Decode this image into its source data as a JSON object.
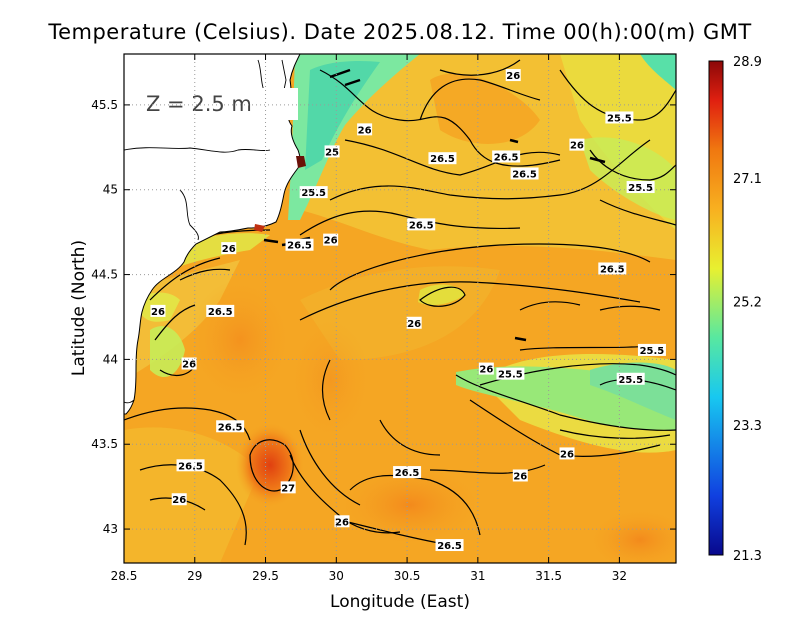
{
  "title": "Temperature (Celsius). Date 2025.08.12. Time 00(h):00(m)  GMT",
  "depth_label": "Z = 2.5 m",
  "xlabel": "Longitude (East)",
  "ylabel": "Latitude (North)",
  "x_ticks": [
    "28.5",
    "29",
    "29.5",
    "30",
    "30.5",
    "31",
    "31.5",
    "32"
  ],
  "y_ticks": [
    "43",
    "43.5",
    "44",
    "44.5",
    "45",
    "45.5"
  ],
  "colorbar": {
    "min": 21.3,
    "max": 28.9,
    "tick_labels": [
      "28.9",
      "27.1",
      "25.2",
      "23.3",
      "21.3"
    ],
    "colors": [
      "#08088c",
      "#1060e8",
      "#18c8f0",
      "#58e8a0",
      "#e8f030",
      "#f8b020",
      "#f07810",
      "#e02010",
      "#8c0808"
    ]
  },
  "map": {
    "lon_range": [
      28.5,
      32.4
    ],
    "lat_range": [
      42.8,
      45.8
    ],
    "grid": "dotted",
    "land_color": "#ffffff",
    "coastline_color": "#000000"
  },
  "contour_labels": [
    {
      "text": "26",
      "lon": 31.25,
      "lat": 45.67
    },
    {
      "text": "26",
      "lon": 30.2,
      "lat": 45.35
    },
    {
      "text": "25",
      "lon": 29.97,
      "lat": 45.22
    },
    {
      "text": "26.5",
      "lon": 30.75,
      "lat": 45.18
    },
    {
      "text": "26.5",
      "lon": 31.2,
      "lat": 45.19
    },
    {
      "text": "26.5",
      "lon": 31.33,
      "lat": 45.09
    },
    {
      "text": "25.5",
      "lon": 32.0,
      "lat": 45.42
    },
    {
      "text": "26",
      "lon": 31.7,
      "lat": 45.26
    },
    {
      "text": "25.5",
      "lon": 32.15,
      "lat": 45.01
    },
    {
      "text": "25.5",
      "lon": 29.84,
      "lat": 44.98
    },
    {
      "text": "26.5",
      "lon": 30.6,
      "lat": 44.79
    },
    {
      "text": "26",
      "lon": 29.96,
      "lat": 44.7
    },
    {
      "text": "26.5",
      "lon": 29.74,
      "lat": 44.67
    },
    {
      "text": "26",
      "lon": 29.24,
      "lat": 44.65
    },
    {
      "text": "26.5",
      "lon": 31.95,
      "lat": 44.53
    },
    {
      "text": "26.5",
      "lon": 29.18,
      "lat": 44.28
    },
    {
      "text": "26",
      "lon": 28.74,
      "lat": 44.28
    },
    {
      "text": "26",
      "lon": 30.55,
      "lat": 44.21
    },
    {
      "text": "25.5",
      "lon": 32.23,
      "lat": 44.05
    },
    {
      "text": "26",
      "lon": 28.96,
      "lat": 43.97
    },
    {
      "text": "26",
      "lon": 31.06,
      "lat": 43.94
    },
    {
      "text": "25.5",
      "lon": 31.23,
      "lat": 43.91
    },
    {
      "text": "25.5",
      "lon": 32.08,
      "lat": 43.88
    },
    {
      "text": "26.5",
      "lon": 29.25,
      "lat": 43.6
    },
    {
      "text": "26",
      "lon": 31.63,
      "lat": 43.44
    },
    {
      "text": "26.5",
      "lon": 28.97,
      "lat": 43.37
    },
    {
      "text": "26.5",
      "lon": 30.5,
      "lat": 43.33
    },
    {
      "text": "26",
      "lon": 31.3,
      "lat": 43.31
    },
    {
      "text": "27",
      "lon": 29.66,
      "lat": 43.24
    },
    {
      "text": "26",
      "lon": 28.89,
      "lat": 43.17
    },
    {
      "text": "26",
      "lon": 30.04,
      "lat": 43.04
    },
    {
      "text": "26.5",
      "lon": 30.8,
      "lat": 42.9
    }
  ]
}
